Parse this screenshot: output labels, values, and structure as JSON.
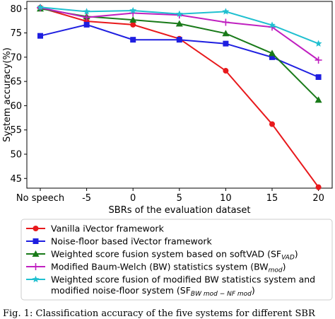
{
  "chart_data": {
    "type": "line",
    "categories": [
      "No speech",
      "-5",
      "0",
      "5",
      "10",
      "15",
      "20"
    ],
    "xlabel": "SBRs of the evaluation dataset",
    "ylabel": "System accuracy(%)",
    "ylim": [
      43,
      81.5
    ],
    "yticks": [
      45,
      50,
      55,
      60,
      65,
      70,
      75,
      80
    ],
    "grid": false,
    "legend_position": "below",
    "series": [
      {
        "name": "Vanilla iVector framework",
        "color": "#e8191c",
        "marker": "circle",
        "values": [
          80.2,
          77.4,
          76.7,
          73.8,
          67.2,
          56.2,
          43.2
        ]
      },
      {
        "name": "Noise-floor based iVector framework",
        "color": "#1f1fe0",
        "marker": "square",
        "values": [
          74.4,
          76.7,
          73.6,
          73.6,
          72.8,
          70.0,
          65.9
        ]
      },
      {
        "name": "Weighted score fusion system based on softVAD (SF_VAD)",
        "color": "#197a19",
        "marker": "triangle",
        "values": [
          80.0,
          78.4,
          77.7,
          76.9,
          74.9,
          70.8,
          61.2
        ]
      },
      {
        "name": "Modified Baum-Welch (BW) statistics system (BW_mod)",
        "color": "#c020c0",
        "marker": "plus",
        "values": [
          80.2,
          78.2,
          79.1,
          78.7,
          77.2,
          76.2,
          69.4
        ]
      },
      {
        "name": "Weighted score fusion of modified BW statistics system and modified noise-floor system (SF_BWmod-NFmod)",
        "color": "#20c0d0",
        "marker": "star",
        "values": [
          80.3,
          79.4,
          79.6,
          78.9,
          79.4,
          76.6,
          72.8
        ]
      }
    ]
  },
  "legend": {
    "items": [
      {
        "main": "Vanilla iVector framework",
        "sub": ""
      },
      {
        "main": "Noise-floor based iVector framework",
        "sub": ""
      },
      {
        "main": "Weighted score fusion system based on softVAD (SF",
        "sub": "VAD",
        "tail": ")"
      },
      {
        "main": "Modified Baum-Welch (BW) statistics system (BW",
        "sub": "mod",
        "tail": ")"
      },
      {
        "main": "Weighted score fusion of modified BW statistics system and",
        "line2": "modified noise-floor system (SF",
        "sub": "BW mod − NF mod",
        "tail": ")"
      }
    ]
  },
  "caption": "Fig. 1: Classification accuracy of the five systems for different SBR"
}
